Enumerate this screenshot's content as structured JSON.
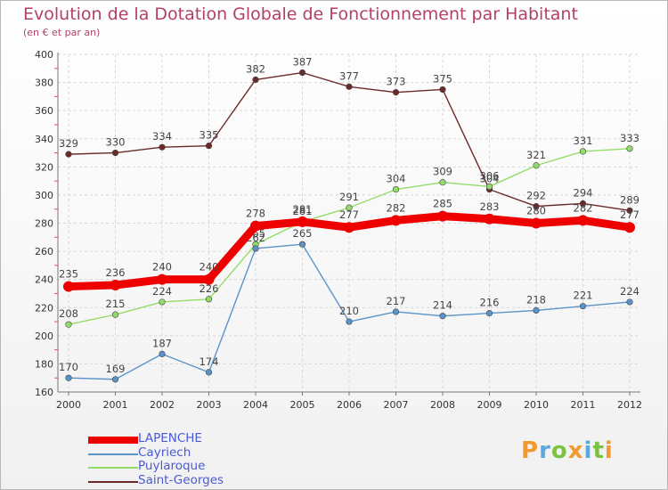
{
  "title": "Evolution de la Dotation Globale de Fonctionnement par Habitant",
  "subtitle": "(en € et par an)",
  "logo": {
    "text": "Proxiti",
    "letters": [
      {
        "ch": "P",
        "color": "#f29a2e"
      },
      {
        "ch": "r",
        "color": "#5aa9e0"
      },
      {
        "ch": "o",
        "color": "#7cc242"
      },
      {
        "ch": "x",
        "color": "#f29a2e"
      },
      {
        "ch": "i",
        "color": "#5aa9e0"
      },
      {
        "ch": "t",
        "color": "#7cc242"
      },
      {
        "ch": "i",
        "color": "#f29a2e"
      }
    ]
  },
  "chart_data": {
    "type": "line",
    "x": [
      "2000",
      "2001",
      "2002",
      "2003",
      "2004",
      "2005",
      "2006",
      "2007",
      "2008",
      "2009",
      "2010",
      "2011",
      "2012"
    ],
    "ylim": [
      160,
      400
    ],
    "yticks": [
      160,
      180,
      200,
      220,
      240,
      260,
      280,
      300,
      320,
      340,
      360,
      380,
      400
    ],
    "grid": true,
    "legend": "bottom-left",
    "series": [
      {
        "name": "LAPENCHE",
        "color": "#ee0000",
        "values": [
          235,
          236,
          240,
          240,
          278,
          281,
          277,
          282,
          285,
          283,
          280,
          282,
          277
        ]
      },
      {
        "name": "Cayriech",
        "color": "#5b93c9",
        "values": [
          170,
          169,
          187,
          174,
          262,
          265,
          210,
          217,
          214,
          216,
          218,
          221,
          224
        ]
      },
      {
        "name": "Puylaroque",
        "color": "#94dc6a",
        "values": [
          208,
          215,
          224,
          226,
          265,
          281,
          291,
          304,
          309,
          306,
          321,
          331,
          333
        ]
      },
      {
        "name": "Saint-Georges",
        "color": "#6b2a2a",
        "values": [
          329,
          330,
          334,
          335,
          382,
          387,
          377,
          373,
          375,
          304,
          292,
          294,
          289
        ]
      }
    ]
  }
}
